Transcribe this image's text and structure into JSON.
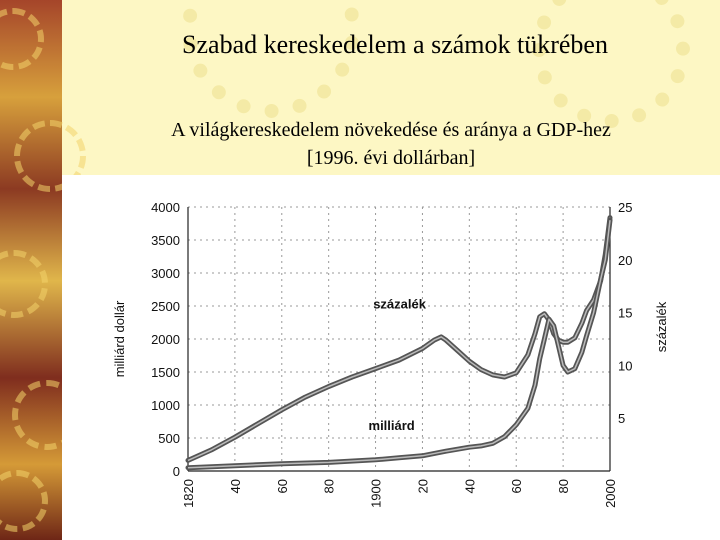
{
  "slide": {
    "title": "Szabad kereskedelem a számok tükrében",
    "subtitle_line1": "A világkereskedelem növekedése és aránya a GDP-hez",
    "subtitle_line2": "[1996. évi dollárban]"
  },
  "chart_data": {
    "type": "line",
    "xlabel": "",
    "ylabel": "milliárd dollár",
    "y2label": "százalék",
    "x_ticks": [
      "1820",
      "40",
      "60",
      "80",
      "1900",
      "20",
      "40",
      "60",
      "80",
      "2000"
    ],
    "x_tick_years": [
      1820,
      1840,
      1860,
      1880,
      1900,
      1920,
      1940,
      1960,
      1980,
      2000
    ],
    "ylim": [
      0,
      4000
    ],
    "y_ticks": [
      0,
      500,
      1000,
      1500,
      2000,
      2500,
      3000,
      3500,
      4000
    ],
    "y2lim": [
      0,
      25
    ],
    "y2_ticks": [
      5,
      10,
      15,
      20,
      25
    ],
    "xlim": [
      1820,
      2000
    ],
    "grid": true,
    "series": [
      {
        "name": "százalék",
        "axis": "right",
        "x": [
          1820,
          1830,
          1840,
          1850,
          1860,
          1870,
          1880,
          1890,
          1900,
          1910,
          1920,
          1925,
          1928,
          1930,
          1935,
          1940,
          1945,
          1950,
          1955,
          1960,
          1965,
          1968,
          1970,
          1972,
          1974,
          1976,
          1978,
          1980,
          1982,
          1985,
          1988,
          1990,
          1993,
          1996,
          1998,
          2000
        ],
        "values": [
          1.0,
          2.0,
          3.2,
          4.5,
          5.8,
          7.0,
          8.0,
          8.9,
          9.7,
          10.5,
          11.6,
          12.4,
          12.7,
          12.4,
          11.4,
          10.4,
          9.6,
          9.1,
          8.9,
          9.3,
          11.0,
          13.0,
          14.6,
          14.9,
          14.3,
          13.0,
          12.4,
          12.2,
          12.2,
          12.6,
          14.0,
          15.2,
          16.2,
          18.0,
          20.5,
          24.0
        ]
      },
      {
        "name": "milliárd",
        "axis": "left",
        "x": [
          1820,
          1840,
          1860,
          1880,
          1900,
          1910,
          1920,
          1930,
          1940,
          1945,
          1950,
          1955,
          1960,
          1965,
          1968,
          1970,
          1972,
          1974,
          1976,
          1978,
          1980,
          1982,
          1985,
          1988,
          1990,
          1993,
          1996,
          1998,
          2000
        ],
        "values": [
          50,
          80,
          110,
          130,
          170,
          200,
          230,
          300,
          360,
          380,
          420,
          520,
          700,
          950,
          1300,
          1700,
          2000,
          2300,
          2200,
          1900,
          1600,
          1500,
          1550,
          1800,
          2050,
          2400,
          2900,
          3200,
          3800
        ]
      }
    ]
  }
}
